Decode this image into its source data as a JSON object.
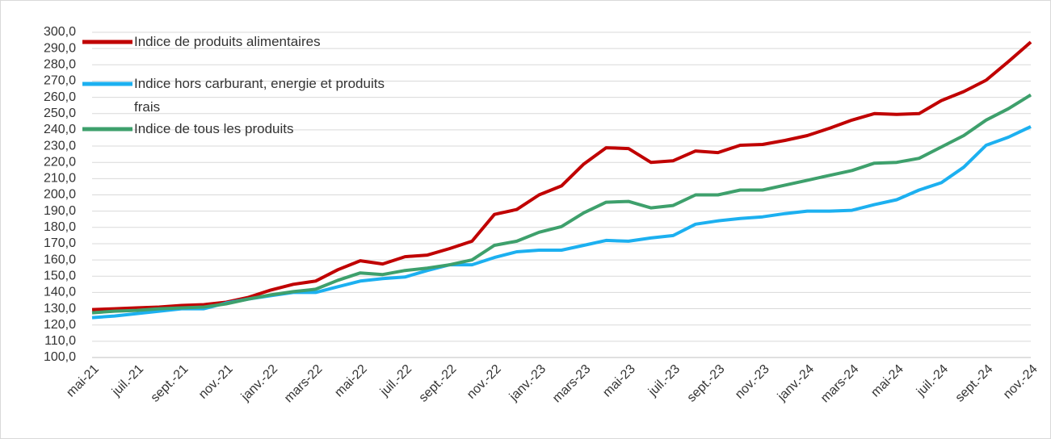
{
  "chart_data": {
    "type": "line",
    "categories": [
      "mai-21",
      null,
      "juil.-21",
      null,
      "sept.-21",
      null,
      "nov.-21",
      null,
      "janv.-22",
      null,
      "mars-22",
      null,
      "mai-22",
      null,
      "juil.-22",
      null,
      "sept.-22",
      null,
      "nov.-22",
      null,
      "janv.-23",
      null,
      "mars-23",
      null,
      "mai-23",
      null,
      "juil.-23",
      null,
      "sept.-23",
      null,
      "nov.-23",
      null,
      "janv.-24",
      null,
      "mars-24",
      null,
      "mai-24",
      null,
      "juil.-24",
      null,
      "sept.-24",
      null,
      "nov.-24"
    ],
    "series": [
      {
        "name": "Indice de produits alimentaires",
        "color": "#c00000",
        "values": [
          129.5,
          130,
          130.5,
          131,
          132,
          132.5,
          134,
          137,
          141.5,
          145,
          147,
          154,
          159.5,
          157.5,
          162,
          163,
          167,
          171.5,
          188,
          191,
          200,
          205.5,
          219,
          229,
          228.5,
          220,
          221,
          227,
          226,
          230.5,
          231,
          233.5,
          236.5,
          241,
          246,
          250,
          249.5,
          250,
          258,
          263.5,
          270.5,
          282,
          294
        ]
      },
      {
        "name": "Indice hors carburant, energie et produits frais",
        "color": "#1cb0f0",
        "values": [
          124.5,
          125.5,
          127,
          128.5,
          130,
          130,
          133.5,
          136,
          138,
          140,
          140,
          143.5,
          147,
          148.5,
          149.5,
          153.5,
          157,
          157,
          161.5,
          165,
          166,
          166,
          169,
          172,
          171.5,
          173.5,
          175,
          182,
          184,
          185.5,
          186.5,
          188.5,
          190,
          190,
          190.5,
          194,
          197,
          203,
          207.5,
          217,
          230.5,
          235.5,
          242
        ]
      },
      {
        "name": "Indice de tous les produits",
        "color": "#3ea06c",
        "values": [
          127.5,
          128.5,
          129,
          130,
          130.5,
          131,
          133,
          136,
          138.5,
          140.5,
          142,
          147.5,
          152,
          151,
          153.5,
          155,
          157,
          160,
          169,
          171.5,
          177,
          180.5,
          189,
          195.5,
          196,
          192,
          193.5,
          200,
          200,
          203,
          203,
          206,
          209,
          212,
          215,
          219.5,
          220,
          222.5,
          229.5,
          236.5,
          246,
          253,
          261.5
        ]
      }
    ],
    "ylim": [
      100,
      300
    ],
    "yticks": [
      {
        "value": 100,
        "label": "100,0"
      },
      {
        "value": 110,
        "label": "110,0"
      },
      {
        "value": 120,
        "label": "120,0"
      },
      {
        "value": 130,
        "label": "130,0"
      },
      {
        "value": 140,
        "label": "140,0"
      },
      {
        "value": 150,
        "label": "150,0"
      },
      {
        "value": 160,
        "label": "160,0"
      },
      {
        "value": 170,
        "label": "170,0"
      },
      {
        "value": 180,
        "label": "180,0"
      },
      {
        "value": 190,
        "label": "190,0"
      },
      {
        "value": 200,
        "label": "200,0"
      },
      {
        "value": 210,
        "label": "210,0"
      },
      {
        "value": 220,
        "label": "220,0"
      },
      {
        "value": 230,
        "label": "230,0"
      },
      {
        "value": 240,
        "label": "240,0"
      },
      {
        "value": 250,
        "label": "250,0"
      },
      {
        "value": 260,
        "label": "260,0"
      },
      {
        "value": 270,
        "label": "270,0"
      },
      {
        "value": 280,
        "label": "280,0"
      },
      {
        "value": 290,
        "label": "290,0"
      },
      {
        "value": 300,
        "label": "300,0"
      }
    ],
    "grid": true,
    "legend": "top-left"
  }
}
